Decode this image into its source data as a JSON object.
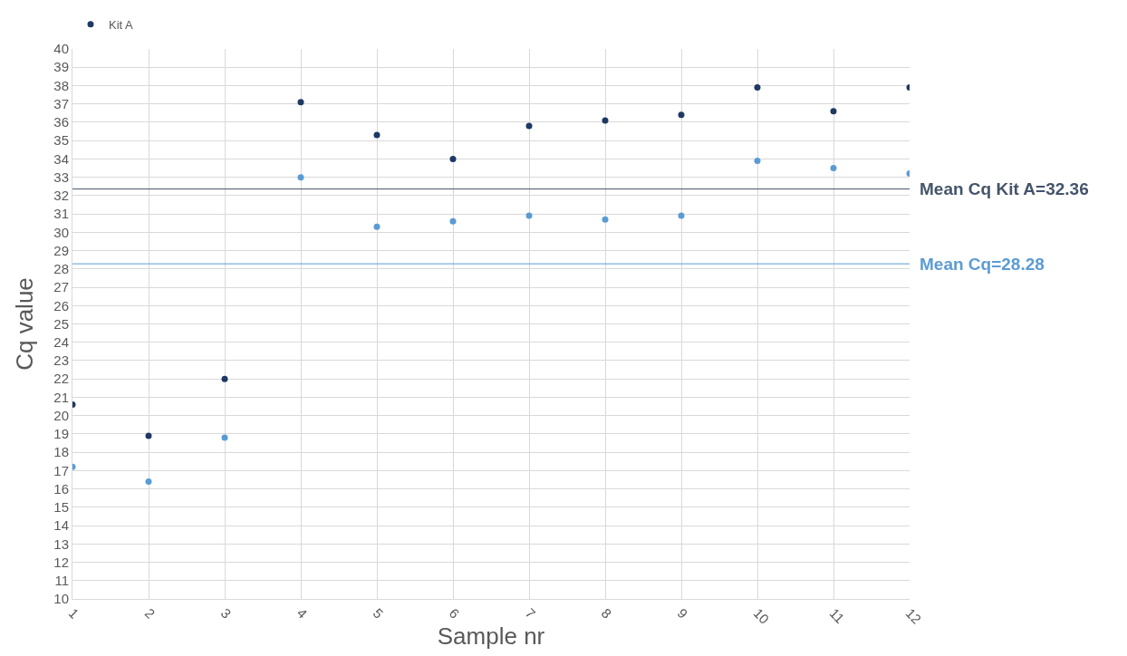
{
  "chart_data": {
    "type": "scatter",
    "xlabel": "Sample nr",
    "ylabel": "Cq value",
    "x": [
      1,
      2,
      3,
      4,
      5,
      6,
      7,
      8,
      9,
      10,
      11,
      12
    ],
    "series": [
      {
        "color": "#5b9bd5",
        "values": [
          17.2,
          16.4,
          18.8,
          33.0,
          30.3,
          30.6,
          30.9,
          30.7,
          30.9,
          33.9,
          33.5,
          33.2
        ]
      },
      {
        "name": "Kit A",
        "color": "#1f3864",
        "values": [
          20.6,
          18.9,
          22.0,
          37.1,
          35.3,
          34.0,
          35.8,
          36.1,
          36.4,
          37.9,
          36.6,
          37.9
        ]
      }
    ],
    "ref_lines": [
      {
        "axis": "y",
        "value": 32.36,
        "label": "Mean Cq Kit A=32.36",
        "color": "#44546a"
      },
      {
        "axis": "y",
        "value": 28.28,
        "label": "Mean Cq=28.28",
        "color": "#5b9bd5"
      }
    ],
    "xlim": [
      1,
      12
    ],
    "xticks": [
      1,
      2,
      3,
      4,
      5,
      6,
      7,
      8,
      9,
      10,
      11,
      12
    ],
    "ylim": [
      10,
      40
    ],
    "yticks": [
      10,
      11,
      12,
      13,
      14,
      15,
      16,
      17,
      18,
      19,
      20,
      21,
      22,
      23,
      24,
      25,
      26,
      27,
      28,
      29,
      30,
      31,
      32,
      33,
      34,
      35,
      36,
      37,
      38,
      39,
      40
    ],
    "grid": true,
    "legend": "top left",
    "marker": "circle"
  }
}
